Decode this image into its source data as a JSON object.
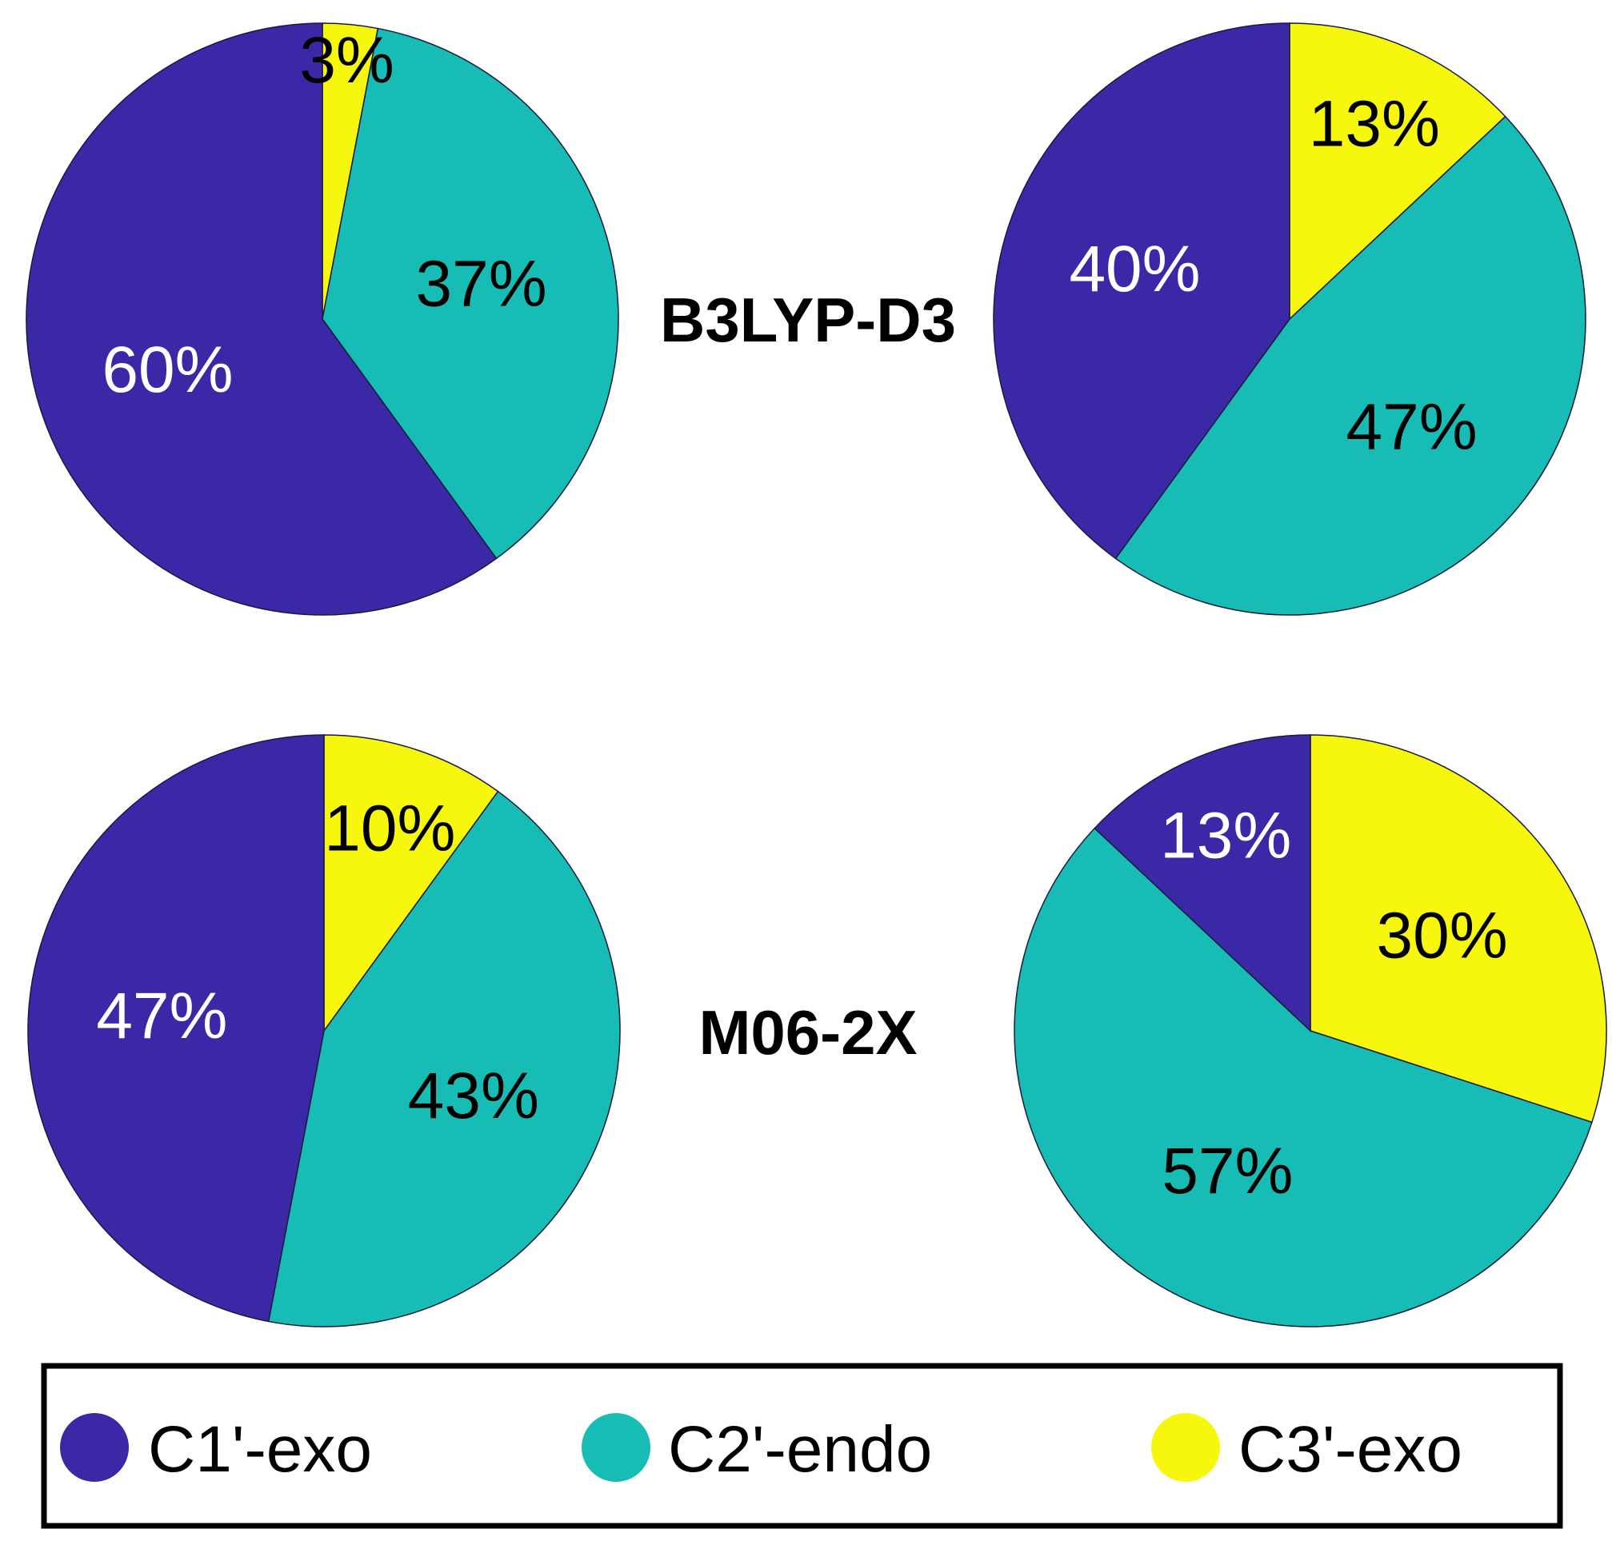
{
  "chart_data": {
    "type": "pie",
    "colors": {
      "C1'-exo": "#3b28a6",
      "C2'-endo": "#17bdb5",
      "C3'-exo": "#f7f70e"
    },
    "methods": [
      "B3LYP-D3",
      "M06-2X"
    ],
    "legend": {
      "items": [
        {
          "label": "C1'-exo",
          "color": "#3b28a6"
        },
        {
          "label": "C2'-endo",
          "color": "#17bdb5"
        },
        {
          "label": "C3'-exo",
          "color": "#f7f70e"
        }
      ]
    },
    "pies": [
      {
        "method": "B3LYP-D3",
        "column": "left",
        "slices": [
          {
            "name": "C3'-exo",
            "value": 3,
            "label": "3%"
          },
          {
            "name": "C2'-endo",
            "value": 37,
            "label": "37%"
          },
          {
            "name": "C1'-exo",
            "value": 60,
            "label": "60%"
          }
        ]
      },
      {
        "method": "B3LYP-D3",
        "column": "right",
        "slices": [
          {
            "name": "C3'-exo",
            "value": 13,
            "label": "13%"
          },
          {
            "name": "C2'-endo",
            "value": 47,
            "label": "47%"
          },
          {
            "name": "C1'-exo",
            "value": 40,
            "label": "40%"
          }
        ]
      },
      {
        "method": "M06-2X",
        "column": "left",
        "slices": [
          {
            "name": "C3'-exo",
            "value": 10,
            "label": "10%"
          },
          {
            "name": "C2'-endo",
            "value": 43,
            "label": "43%"
          },
          {
            "name": "C1'-exo",
            "value": 47,
            "label": "47%"
          }
        ]
      },
      {
        "method": "M06-2X",
        "column": "right",
        "slices": [
          {
            "name": "C3'-exo",
            "value": 30,
            "label": "30%"
          },
          {
            "name": "C2'-endo",
            "value": 57,
            "label": "57%"
          },
          {
            "name": "C1'-exo",
            "value": 13,
            "label": "13%"
          }
        ]
      }
    ]
  }
}
